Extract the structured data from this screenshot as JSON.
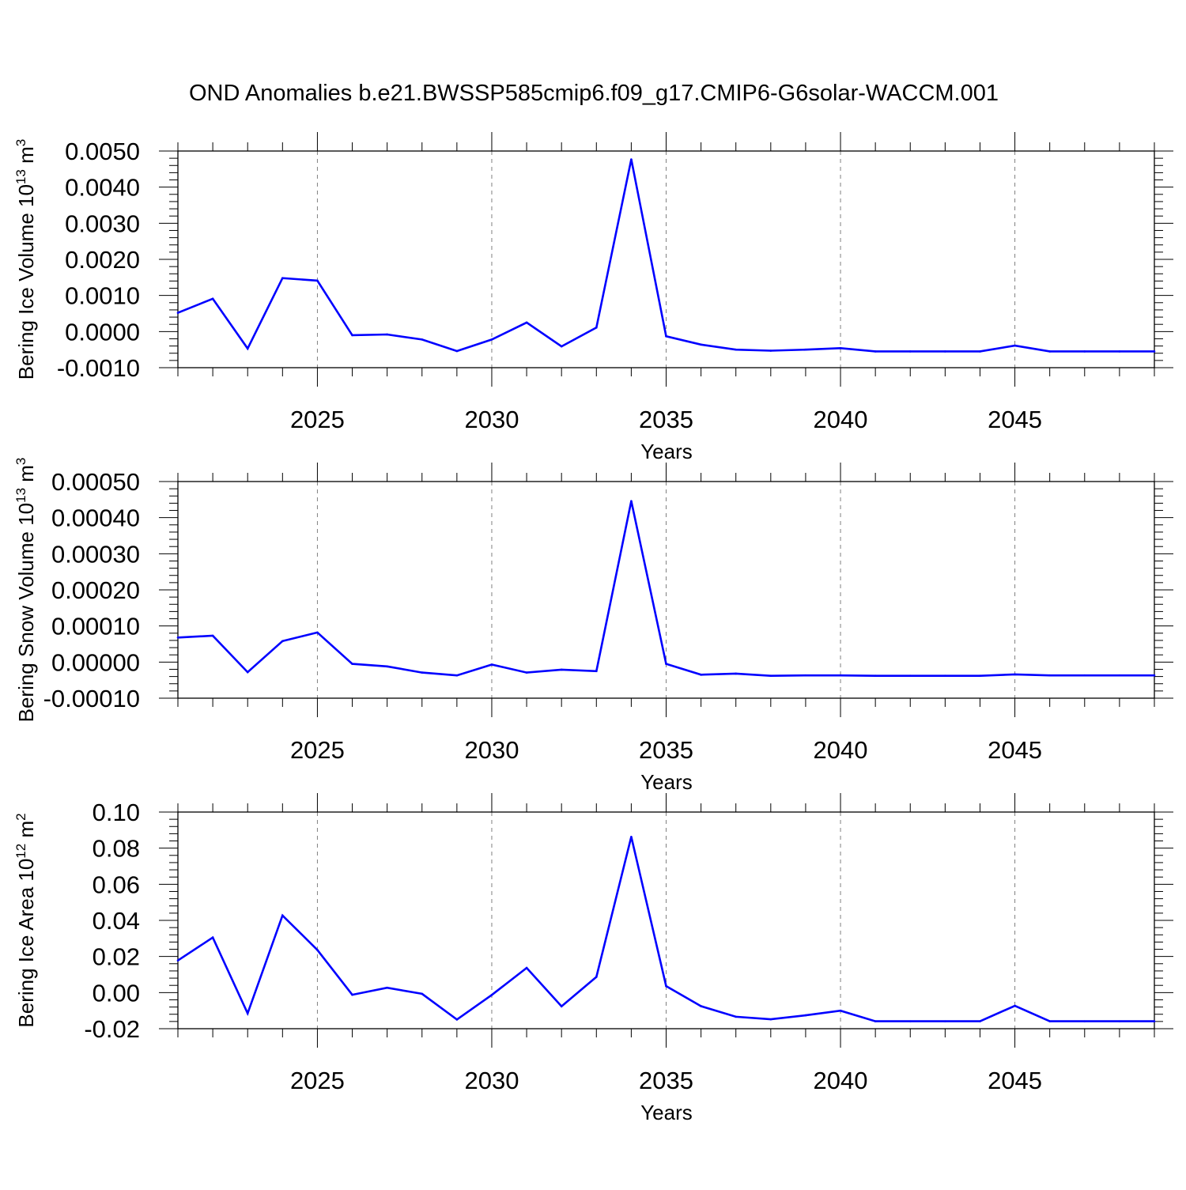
{
  "figure": {
    "title": "OND Anomalies b.e21.BWSSP585cmip6.f09_g17.CMIP6-G6solar-WACCM.001",
    "line_color": "#0000ff",
    "grid_color": "#808080"
  },
  "chart_data": [
    {
      "type": "line",
      "title": "",
      "xlabel": "Years",
      "ylabel_main": "Bering Ice Volume 10",
      "ylabel_exp": "13",
      "ylabel_unit": " m",
      "ylabel_unit_exp": "3",
      "xlim": [
        2021,
        2049
      ],
      "ylim": [
        -0.001,
        0.005
      ],
      "xticks": [
        2025,
        2030,
        2035,
        2040,
        2045
      ],
      "xtick_labels": [
        "2025",
        "2030",
        "2035",
        "2040",
        "2045"
      ],
      "yticks": [
        -0.001,
        0.0,
        0.001,
        0.002,
        0.003,
        0.004,
        0.005
      ],
      "ytick_labels": [
        "-0.0010",
        "0.0000",
        "0.0010",
        "0.0020",
        "0.0030",
        "0.0040",
        "0.0050"
      ],
      "series": [
        {
          "name": "Bering Ice Volume",
          "x": [
            2021,
            2022,
            2023,
            2024,
            2025,
            2026,
            2027,
            2028,
            2029,
            2030,
            2031,
            2032,
            2033,
            2034,
            2035,
            2036,
            2037,
            2038,
            2039,
            2040,
            2041,
            2042,
            2043,
            2044,
            2045,
            2046,
            2047,
            2048,
            2049
          ],
          "y": [
            0.00052,
            0.00091,
            -0.00047,
            0.00148,
            0.00141,
            -0.0001,
            -8e-05,
            -0.00022,
            -0.00054,
            -0.00022,
            0.00025,
            -0.00041,
            0.00011,
            0.00477,
            -0.00013,
            -0.00036,
            -0.0005,
            -0.00053,
            -0.0005,
            -0.00046,
            -0.00055,
            -0.00055,
            -0.00055,
            -0.00055,
            -0.00039,
            -0.00055,
            -0.00055,
            -0.00055,
            -0.00055
          ]
        }
      ]
    },
    {
      "type": "line",
      "title": "",
      "xlabel": "Years",
      "ylabel_main": "Bering Snow Volume 10",
      "ylabel_exp": "13",
      "ylabel_unit": " m",
      "ylabel_unit_exp": "3",
      "xlim": [
        2021,
        2049
      ],
      "ylim": [
        -0.0001,
        0.0005
      ],
      "xticks": [
        2025,
        2030,
        2035,
        2040,
        2045
      ],
      "xtick_labels": [
        "2025",
        "2030",
        "2035",
        "2040",
        "2045"
      ],
      "yticks": [
        -0.0001,
        0.0,
        0.0001,
        0.0002,
        0.0003,
        0.0004,
        0.0005
      ],
      "ytick_labels": [
        "-0.00010",
        "0.00000",
        "0.00010",
        "0.00020",
        "0.00030",
        "0.00040",
        "0.00050"
      ],
      "series": [
        {
          "name": "Bering Snow Volume",
          "x": [
            2021,
            2022,
            2023,
            2024,
            2025,
            2026,
            2027,
            2028,
            2029,
            2030,
            2031,
            2032,
            2033,
            2034,
            2035,
            2036,
            2037,
            2038,
            2039,
            2040,
            2041,
            2042,
            2043,
            2044,
            2045,
            2046,
            2047,
            2048,
            2049
          ],
          "y": [
            6.8e-05,
            7.3e-05,
            -2.8e-05,
            5.8e-05,
            8.2e-05,
            -5e-06,
            -1.2e-05,
            -2.9e-05,
            -3.7e-05,
            -7e-06,
            -2.9e-05,
            -2.1e-05,
            -2.5e-05,
            0.000446,
            -5e-06,
            -3.5e-05,
            -3.2e-05,
            -3.8e-05,
            -3.7e-05,
            -3.7e-05,
            -3.8e-05,
            -3.8e-05,
            -3.8e-05,
            -3.8e-05,
            -3.4e-05,
            -3.7e-05,
            -3.7e-05,
            -3.7e-05,
            -3.7e-05
          ]
        }
      ]
    },
    {
      "type": "line",
      "title": "",
      "xlabel": "Years",
      "ylabel_main": "Bering Ice Area 10",
      "ylabel_exp": "12",
      "ylabel_unit": " m",
      "ylabel_unit_exp": "2",
      "xlim": [
        2021,
        2049
      ],
      "ylim": [
        -0.02,
        0.1
      ],
      "xticks": [
        2025,
        2030,
        2035,
        2040,
        2045
      ],
      "xtick_labels": [
        "2025",
        "2030",
        "2035",
        "2040",
        "2045"
      ],
      "yticks": [
        -0.02,
        0.0,
        0.02,
        0.04,
        0.06,
        0.08,
        0.1
      ],
      "ytick_labels": [
        "-0.02",
        "0.00",
        "0.02",
        "0.04",
        "0.06",
        "0.08",
        "0.10"
      ],
      "series": [
        {
          "name": "Bering Ice Area",
          "x": [
            2021,
            2022,
            2023,
            2024,
            2025,
            2026,
            2027,
            2028,
            2029,
            2030,
            2031,
            2032,
            2033,
            2034,
            2035,
            2036,
            2037,
            2038,
            2039,
            2040,
            2041,
            2042,
            2043,
            2044,
            2045,
            2046,
            2047,
            2048,
            2049
          ],
          "y": [
            0.0178,
            0.0305,
            -0.0115,
            0.0427,
            0.0236,
            -0.0012,
            0.0027,
            -0.0007,
            -0.0149,
            -0.0013,
            0.0137,
            -0.0076,
            0.0087,
            0.0863,
            0.0036,
            -0.0075,
            -0.0134,
            -0.0148,
            -0.0126,
            -0.01,
            -0.0159,
            -0.0159,
            -0.0159,
            -0.0159,
            -0.0073,
            -0.0159,
            -0.0159,
            -0.0159,
            -0.0159
          ]
        }
      ]
    }
  ]
}
